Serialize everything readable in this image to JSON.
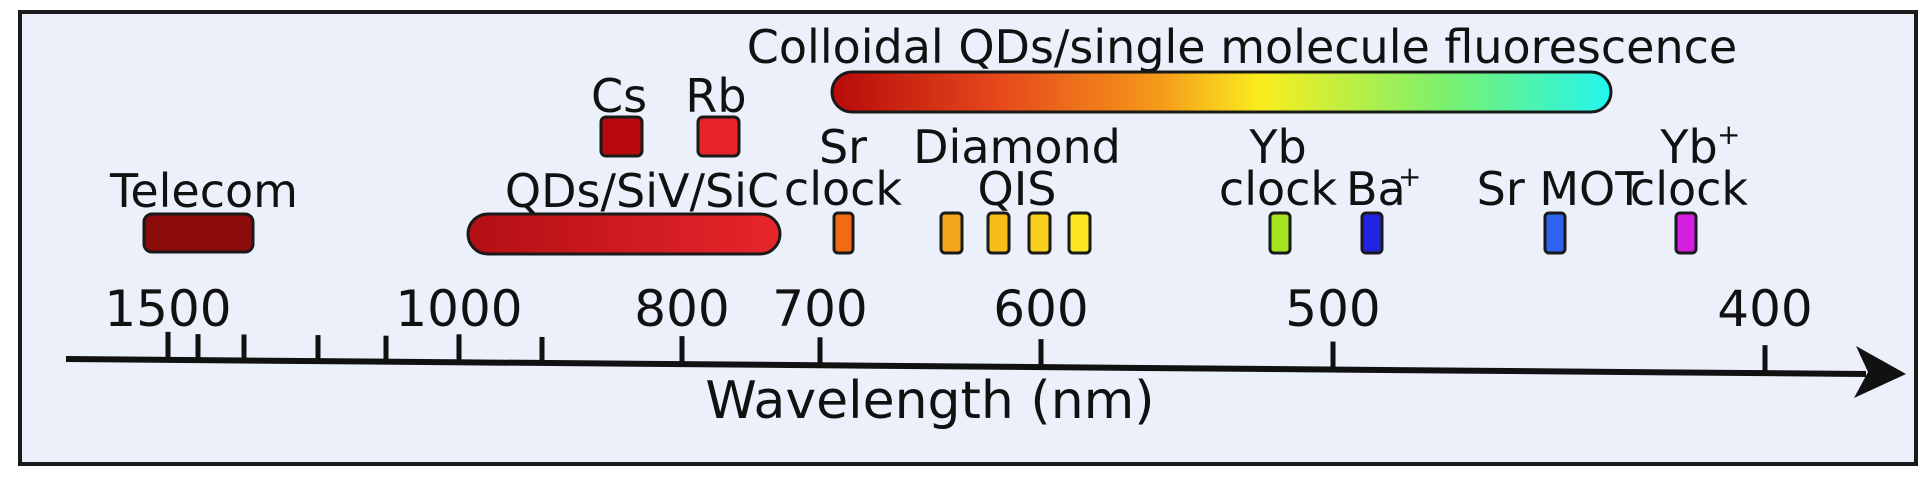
{
  "axis": {
    "title": "Wavelength (nm)",
    "ticks": [
      {
        "value": 1500,
        "label": "1500"
      },
      {
        "value": 1450,
        "label": ""
      },
      {
        "value": 1400,
        "label": ""
      },
      {
        "value": 1300,
        "label": ""
      },
      {
        "value": 1200,
        "label": ""
      },
      {
        "value": 1000,
        "label": "1000"
      },
      {
        "value": 900,
        "label": ""
      },
      {
        "value": 800,
        "label": "800"
      },
      {
        "value": 700,
        "label": "700"
      },
      {
        "value": 600,
        "label": "600"
      },
      {
        "value": 500,
        "label": "500"
      },
      {
        "value": 400,
        "label": "400"
      }
    ]
  },
  "labels": {
    "telecom": "Telecom",
    "qds_siv_sic": "QDs/SiV/SiC",
    "cs": "Cs",
    "rb": "Rb",
    "colloidal": "Colloidal QDs/single molecule fluorescence",
    "sr_clock_1": "Sr",
    "sr_clock_2": "clock",
    "diamond_1": "Diamond",
    "diamond_2": "QIS",
    "yb_clock_1": "Yb",
    "yb_clock_2": "clock",
    "ba_plus": "Ba",
    "ba_plus_sup": "+",
    "sr_mot": "Sr MOT",
    "yb_plus_clock_1": "Yb",
    "yb_plus_sup": "+",
    "yb_plus_clock_2": "clock"
  },
  "colors": {
    "background": "#ecf0fb",
    "frame": "#1a1a1a",
    "telecom": "#8b0a0a",
    "cs": "#b8090f",
    "rb": "#e8222a",
    "sr_clock": "#f26a12",
    "diamond_1": "#f5a51a",
    "diamond_2": "#f7bd18",
    "diamond_3": "#f9d11c",
    "diamond_4": "#fbe621",
    "yb_clock": "#a4e520",
    "ba_plus": "#2222e0",
    "sr_mot": "#2e62f0",
    "yb_plus": "#d41ee0",
    "qds_gradient": [
      "#b30f14",
      "#e8262c"
    ],
    "colloidal_gradient": [
      "#b80b0b",
      "#e64a1c",
      "#f59a1a",
      "#fbed1e",
      "#7ef06a",
      "#22f6ee"
    ]
  }
}
